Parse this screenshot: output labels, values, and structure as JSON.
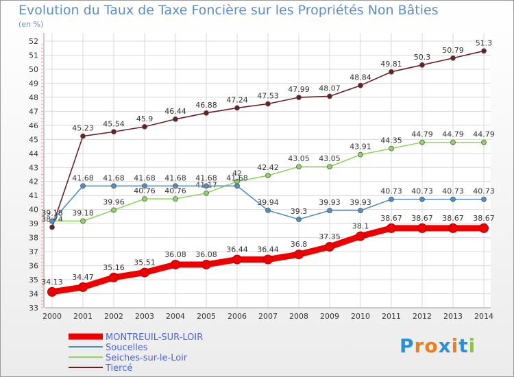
{
  "title": "Evolution du Taux de Taxe Foncière sur les Propriétés Non Bâties",
  "unit": "(en %)",
  "logo": "Proxiti",
  "chart_data": {
    "type": "line",
    "title": "Evolution du Taux de Taxe Foncière sur les Propriétés Non Bâties",
    "ylabel": "(en %)",
    "ylim": [
      33,
      52
    ],
    "yticks": [
      33,
      34,
      35,
      36,
      37,
      38,
      39,
      40,
      41,
      42,
      43,
      44,
      45,
      46,
      47,
      48,
      49,
      50,
      51,
      52
    ],
    "x": [
      "2000",
      "2001",
      "2002",
      "2003",
      "2004",
      "2005",
      "2006",
      "2007",
      "2008",
      "2009",
      "2010",
      "2011",
      "2012",
      "2013",
      "2014"
    ],
    "legend_position": "bottom-left",
    "series": [
      {
        "name": "MONTREUIL-SUR-LOIR",
        "color": "#ee0000",
        "values": [
          34.13,
          34.47,
          35.16,
          35.51,
          36.08,
          36.08,
          36.44,
          36.44,
          36.8,
          37.35,
          38.1,
          38.67,
          38.67,
          38.67,
          38.67
        ],
        "labels": [
          "34.13",
          "34.47",
          "35.16",
          "35.51",
          "36.08",
          "36.08",
          "36.44",
          "36.44",
          "36.8",
          "37.35",
          "38.1",
          "38.67",
          "38.67",
          "38.67",
          "38.67"
        ]
      },
      {
        "name": "Soucelles",
        "color": "#4f8fc7",
        "values": [
          39.18,
          41.68,
          41.68,
          41.68,
          41.68,
          41.68,
          41.68,
          39.94,
          39.3,
          39.93,
          39.93,
          40.73,
          40.73,
          40.73,
          40.73
        ],
        "labels": [
          "39.18",
          "41.68",
          "41.68",
          "41.68",
          "41.68",
          "41.68",
          "41.68",
          "39.94",
          "39.3",
          "39.93",
          "39.93",
          "40.73",
          "40.73",
          "40.73",
          "40.73"
        ]
      },
      {
        "name": "Seiches-sur-le-Loir",
        "color": "#8ed45f",
        "values": [
          39.18,
          39.18,
          39.96,
          40.76,
          40.76,
          41.17,
          42,
          42.42,
          43.05,
          43.05,
          43.91,
          44.35,
          44.79,
          44.79,
          44.79
        ],
        "labels": [
          "39.18",
          "39.18",
          "39.96",
          "40.76",
          "40.76",
          "41.17",
          "42",
          "42.42",
          "43.05",
          "43.05",
          "43.91",
          "44.35",
          "44.79",
          "44.79",
          "44.79"
        ]
      },
      {
        "name": "Tiercé",
        "color": "#6b1f24",
        "values": [
          38.74,
          45.23,
          45.54,
          45.9,
          46.44,
          46.88,
          47.24,
          47.53,
          47.99,
          48.07,
          48.84,
          49.81,
          50.3,
          50.79,
          51.3
        ],
        "labels": [
          "38.74",
          "45.23",
          "45.54",
          "45.9",
          "46.44",
          "46.88",
          "47.24",
          "47.53",
          "47.99",
          "48.07",
          "48.84",
          "49.81",
          "50.3",
          "50.79",
          "51.3"
        ]
      }
    ]
  }
}
